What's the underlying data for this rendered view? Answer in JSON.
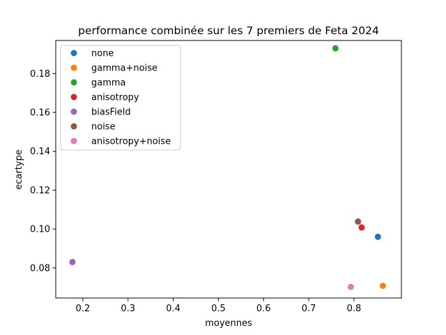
{
  "chart_data": {
    "type": "scatter",
    "title": "performance combinée sur les 7 premiers de Feta 2024",
    "xlabel": "moyennes",
    "ylabel": "ecartype",
    "xlim": [
      0.14,
      0.905
    ],
    "ylim": [
      0.0645,
      0.197
    ],
    "xticks": [
      0.2,
      0.3,
      0.4,
      0.5,
      0.6,
      0.7,
      0.8
    ],
    "xtick_labels": [
      "0.2",
      "0.3",
      "0.4",
      "0.5",
      "0.6",
      "0.7",
      "0.8"
    ],
    "yticks": [
      0.08,
      0.1,
      0.12,
      0.14,
      0.16,
      0.18
    ],
    "ytick_labels": [
      "0.08",
      "0.10",
      "0.12",
      "0.14",
      "0.16",
      "0.18"
    ],
    "grid": false,
    "legend_position": "top-left",
    "series": [
      {
        "name": "none",
        "color": "#1f77b4",
        "x": [
          0.853
        ],
        "y": [
          0.096
        ]
      },
      {
        "name": "gamma+noise",
        "color": "#ff7f0e",
        "x": [
          0.864
        ],
        "y": [
          0.0708
        ]
      },
      {
        "name": "gamma",
        "color": "#2ca02c",
        "x": [
          0.759
        ],
        "y": [
          0.193
        ]
      },
      {
        "name": "anisotropy",
        "color": "#d62728",
        "x": [
          0.817
        ],
        "y": [
          0.1008
        ]
      },
      {
        "name": "biasField",
        "color": "#9467bd",
        "x": [
          0.177
        ],
        "y": [
          0.083
        ]
      },
      {
        "name": "noise",
        "color": "#8c564b",
        "x": [
          0.809
        ],
        "y": [
          0.1038
        ]
      },
      {
        "name": "anisotropy+noise",
        "color": "#e377c2",
        "x": [
          0.793
        ],
        "y": [
          0.0702
        ]
      }
    ]
  }
}
